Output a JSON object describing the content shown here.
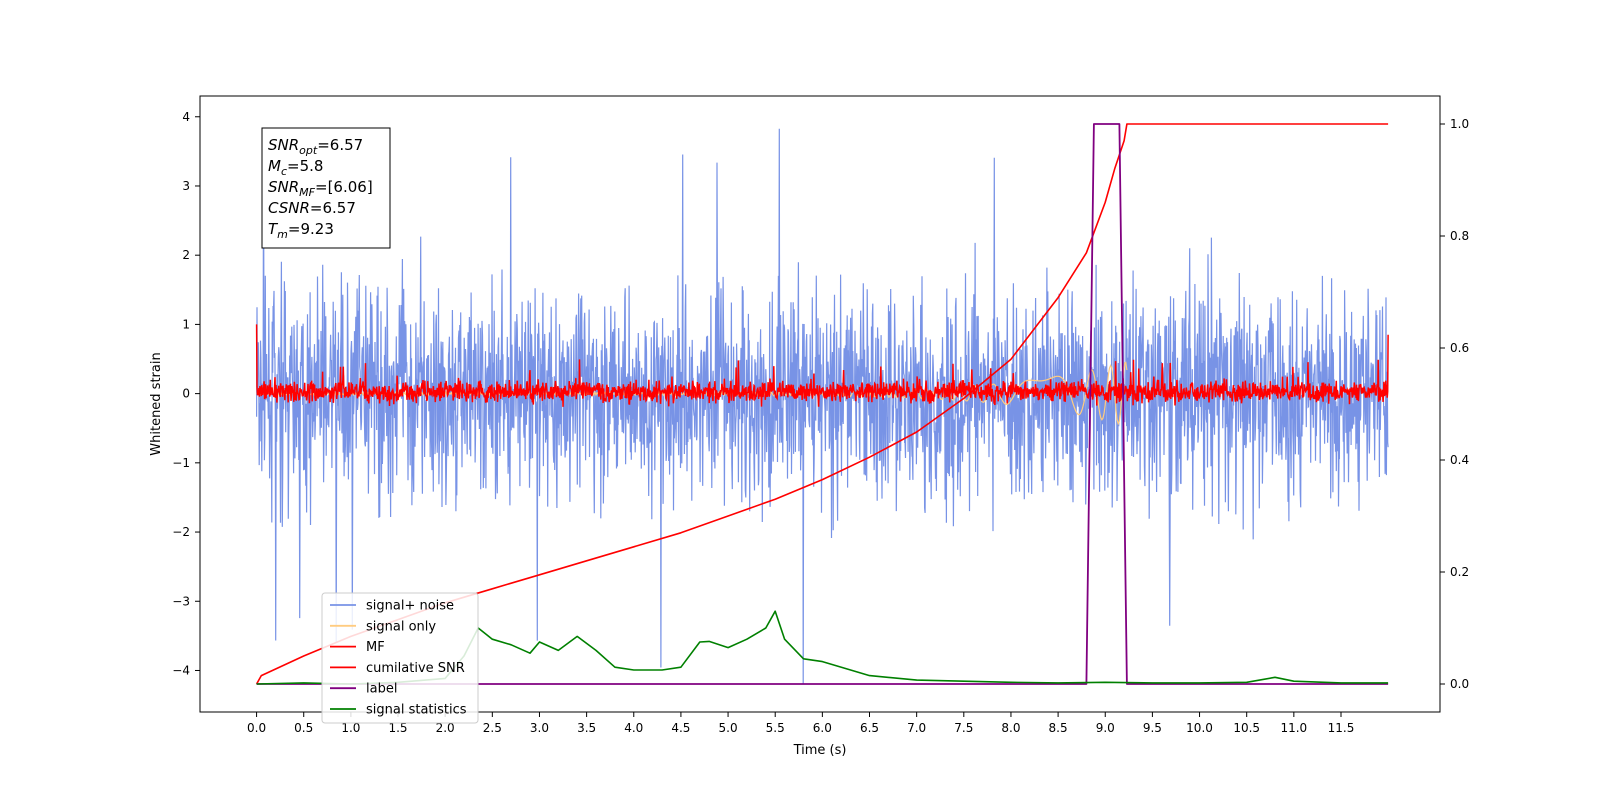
{
  "chart_data": {
    "type": "line",
    "title": "",
    "xlabel": "Time (s)",
    "ylabel": "Whitened strain",
    "xlim": [
      -0.6,
      12.55
    ],
    "ylim": [
      -4.6,
      4.3
    ],
    "y2lim": [
      -0.05,
      1.05
    ],
    "xticks": [
      0.0,
      0.5,
      1.0,
      1.5,
      2.0,
      2.5,
      3.0,
      3.5,
      4.0,
      4.5,
      5.0,
      5.5,
      6.0,
      6.5,
      7.0,
      7.5,
      8.0,
      8.5,
      9.0,
      9.5,
      10.0,
      10.5,
      11.0,
      11.5
    ],
    "xtick_labels": [
      "0.0",
      "0.5",
      "1.0",
      "1.5",
      "2.0",
      "2.5",
      "3.0",
      "3.5",
      "4.0",
      "4.5",
      "5.0",
      "5.5",
      "6.0",
      "6.5",
      "7.0",
      "7.5",
      "8.0",
      "8.5",
      "9.0",
      "9.5",
      "10.0",
      "10.5",
      "11.0",
      "11.5"
    ],
    "yticks": [
      -4,
      -3,
      -2,
      -1,
      0,
      1,
      2,
      3,
      4
    ],
    "ytick_labels": [
      "−4",
      "−3",
      "−2",
      "−1",
      "0",
      "1",
      "2",
      "3",
      "4"
    ],
    "y2ticks": [
      0.0,
      0.2,
      0.4,
      0.6,
      0.8,
      1.0
    ],
    "y2tick_labels": [
      "0.0",
      "0.2",
      "0.4",
      "0.6",
      "0.8",
      "1.0"
    ],
    "grid": false,
    "legend_position": "lower-left",
    "legend": [
      {
        "name": "signal+ noise",
        "color": "#7893e6"
      },
      {
        "name": "signal only",
        "color": "#ffcc80"
      },
      {
        "name": "MF",
        "color": "#ff0000"
      },
      {
        "name": "cumilative SNR",
        "color": "#ff0000"
      },
      {
        "name": "label",
        "color": "#800080"
      },
      {
        "name": "signal statistics",
        "color": "#008000"
      }
    ],
    "annotation": [
      {
        "base": "SNR",
        "sub": "opt",
        "value": "=6.57"
      },
      {
        "base": "M",
        "sub": "c",
        "value": "=5.8"
      },
      {
        "base": "SNR",
        "sub": "MF",
        "value": "=[6.06]"
      },
      {
        "base": "CSNR",
        "sub": "",
        "value": "=6.57"
      },
      {
        "base": "T",
        "sub": "m",
        "value": "=9.23"
      }
    ],
    "series": [
      {
        "name": "signal+ noise",
        "axis": "left",
        "color": "#7893e6",
        "kind": "noise",
        "x_range": [
          0,
          12
        ],
        "envelope": [
          -2.4,
          2.4
        ],
        "outlier_max": 3.9,
        "outlier_min": -4.2
      },
      {
        "name": "signal only",
        "axis": "left",
        "color": "#ffcc80",
        "kind": "chirp",
        "x_range": [
          0,
          9.23
        ],
        "peak": 0.45
      },
      {
        "name": "MF",
        "axis": "left",
        "color": "#ff0000",
        "kind": "noise",
        "x_range": [
          0,
          12
        ],
        "envelope": [
          -0.25,
          0.3
        ],
        "start_value": 1.0,
        "end_value": 0.85
      },
      {
        "name": "cumilative SNR",
        "axis": "right",
        "color": "#ff0000",
        "x": [
          0.0,
          0.05,
          0.5,
          1.0,
          1.5,
          2.0,
          2.5,
          3.0,
          3.5,
          4.0,
          4.5,
          5.0,
          5.5,
          6.0,
          6.5,
          7.0,
          7.5,
          8.0,
          8.5,
          8.8,
          9.0,
          9.1,
          9.2,
          9.23,
          9.5,
          10.0,
          11.0,
          12.0
        ],
        "y": [
          0.0,
          0.015,
          0.05,
          0.085,
          0.115,
          0.145,
          0.17,
          0.195,
          0.22,
          0.245,
          0.27,
          0.3,
          0.33,
          0.365,
          0.405,
          0.45,
          0.51,
          0.58,
          0.69,
          0.77,
          0.86,
          0.92,
          0.97,
          1.0,
          1.0,
          1.0,
          1.0,
          1.0
        ]
      },
      {
        "name": "label",
        "axis": "right",
        "color": "#800080",
        "x": [
          0.0,
          8.8,
          8.88,
          9.15,
          9.23,
          12.0
        ],
        "y": [
          0.0,
          0.0,
          1.0,
          1.0,
          0.0,
          0.0
        ]
      },
      {
        "name": "signal statistics",
        "axis": "right",
        "color": "#008000",
        "x": [
          0.0,
          0.5,
          1.0,
          1.5,
          2.0,
          2.2,
          2.35,
          2.5,
          2.7,
          2.9,
          3.0,
          3.2,
          3.4,
          3.6,
          3.8,
          4.0,
          4.3,
          4.5,
          4.7,
          4.8,
          5.0,
          5.2,
          5.4,
          5.5,
          5.6,
          5.8,
          6.0,
          6.3,
          6.5,
          7.0,
          7.5,
          8.0,
          8.5,
          9.0,
          9.5,
          10.0,
          10.5,
          10.8,
          11.0,
          11.5,
          12.0
        ],
        "y": [
          0.0,
          0.002,
          0.0,
          0.003,
          0.01,
          0.05,
          0.1,
          0.08,
          0.07,
          0.055,
          0.075,
          0.06,
          0.085,
          0.06,
          0.03,
          0.025,
          0.025,
          0.03,
          0.075,
          0.076,
          0.065,
          0.08,
          0.1,
          0.13,
          0.08,
          0.045,
          0.04,
          0.025,
          0.015,
          0.007,
          0.005,
          0.003,
          0.002,
          0.003,
          0.002,
          0.002,
          0.003,
          0.012,
          0.005,
          0.002,
          0.002
        ]
      }
    ]
  }
}
